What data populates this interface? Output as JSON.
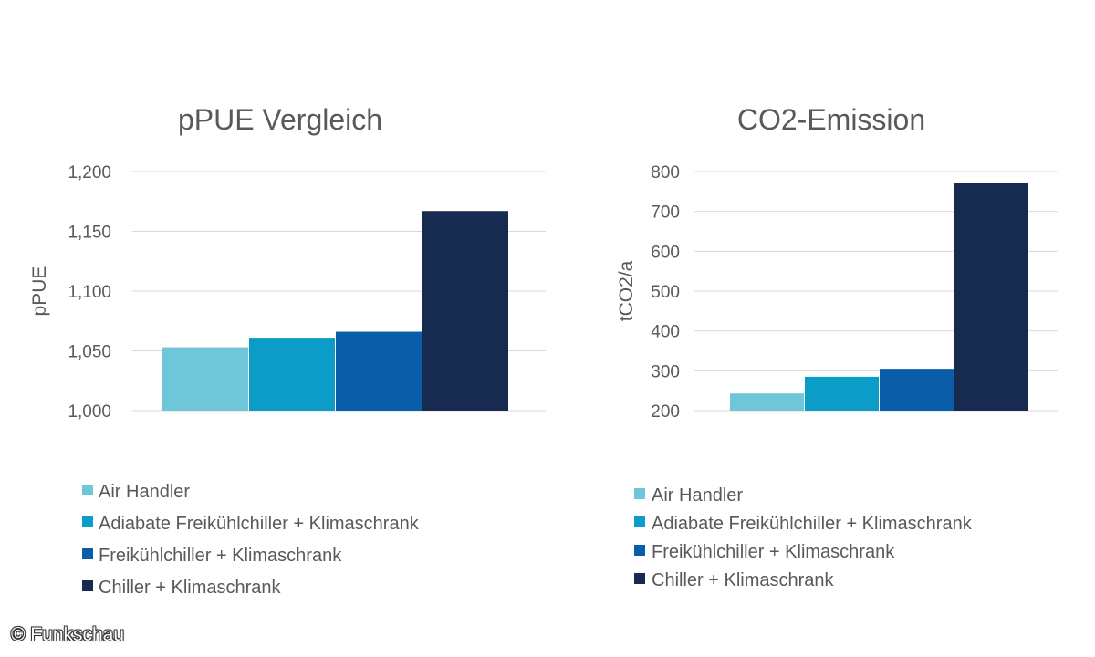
{
  "colors": {
    "series": [
      "#6ec6d8",
      "#0b9cc7",
      "#0a5da8",
      "#172a4f"
    ],
    "grid": "#d9d9d9",
    "text": "#595959"
  },
  "legend": [
    "Air Handler",
    "Adiabate Freikühlchiller + Klimaschrank",
    "Freikühlchiller + Klimaschrank",
    "Chiller + Klimaschrank"
  ],
  "credit": "© Funkschau",
  "chart_data": [
    {
      "type": "bar",
      "title": "pPUE Vergleich",
      "xlabel": "",
      "ylabel": "pPUE",
      "ylim": [
        1.0,
        1.2
      ],
      "yticks": [
        1.0,
        1.05,
        1.1,
        1.15,
        1.2
      ],
      "ytick_labels": [
        "1,000",
        "1,050",
        "1,100",
        "1,150",
        "1,200"
      ],
      "categories": [
        ""
      ],
      "series": [
        {
          "name": "Air Handler",
          "values": [
            1.053
          ]
        },
        {
          "name": "Adiabate Freikühlchiller + Klimaschrank",
          "values": [
            1.061
          ]
        },
        {
          "name": "Freikühlchiller + Klimaschrank",
          "values": [
            1.066
          ]
        },
        {
          "name": "Chiller + Klimaschrank",
          "values": [
            1.167
          ]
        }
      ],
      "grid": true,
      "legend_position": "bottom"
    },
    {
      "type": "bar",
      "title": "CO2-Emission",
      "xlabel": "",
      "ylabel": "tCO2/a",
      "ylim": [
        200,
        800
      ],
      "yticks": [
        200,
        300,
        400,
        500,
        600,
        700,
        800
      ],
      "ytick_labels": [
        "200",
        "300",
        "400",
        "500",
        "600",
        "700",
        "800"
      ],
      "categories": [
        ""
      ],
      "series": [
        {
          "name": "Air Handler",
          "values": [
            243
          ]
        },
        {
          "name": "Adiabate Freikühlchiller + Klimaschrank",
          "values": [
            285
          ]
        },
        {
          "name": "Freikühlchiller + Klimaschrank",
          "values": [
            305
          ]
        },
        {
          "name": "Chiller + Klimaschrank",
          "values": [
            771
          ]
        }
      ],
      "grid": true,
      "legend_position": "bottom"
    }
  ]
}
